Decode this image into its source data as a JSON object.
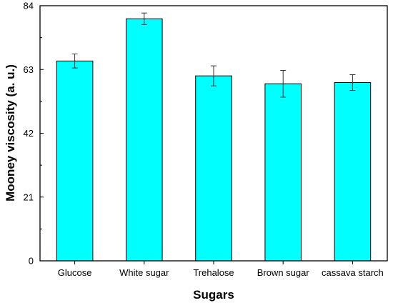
{
  "chart_data": {
    "type": "bar",
    "title": "",
    "xlabel": "Sugars",
    "ylabel": "Mooney viscosity (a. u.)",
    "categories": [
      "Glucose",
      "White sugar",
      "Trehalose",
      "Brown sugar",
      "cassava starch"
    ],
    "values": [
      65.8,
      79.7,
      60.9,
      58.3,
      58.7
    ],
    "errors": [
      2.3,
      1.9,
      3.3,
      4.4,
      2.6
    ],
    "ylim": [
      0,
      84
    ],
    "yticks": [
      "0",
      "21",
      "42",
      "63",
      "84"
    ],
    "bar_color": "#00ffff",
    "bar_edge_color": "#000000",
    "grid": false,
    "legend": "none"
  }
}
